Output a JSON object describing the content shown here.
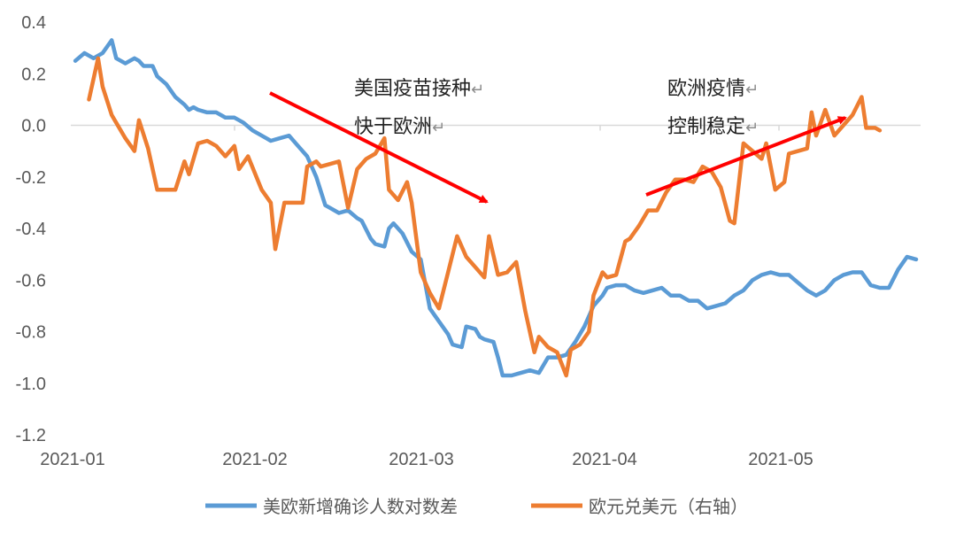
{
  "chart_data": {
    "type": "line",
    "ylim": [
      -1.2,
      0.4
    ],
    "yticks": [
      "0.4",
      "0.2",
      "0.0",
      "-0.2",
      "-0.4",
      "-0.6",
      "-0.8",
      "-1.0",
      "-1.2"
    ],
    "xtick_labels": [
      "2021-01",
      "2021-02",
      "2021-03",
      "2021-04",
      "2021-05"
    ],
    "grid": false,
    "legend_position": "bottom",
    "annotations": [
      {
        "lines": [
          "美国疫苗接种",
          "快于欧洲"
        ],
        "marker": "↵"
      },
      {
        "lines": [
          "欧洲疫情",
          "控制稳定"
        ],
        "marker": "↵"
      }
    ],
    "series": [
      {
        "name": "美欧新增确诊人数对数差",
        "color": "#5b9bd5",
        "points": [
          [
            1,
            0.25
          ],
          [
            3,
            0.28
          ],
          [
            5,
            0.26
          ],
          [
            7,
            0.28
          ],
          [
            9,
            0.33
          ],
          [
            10,
            0.26
          ],
          [
            12,
            0.24
          ],
          [
            14,
            0.26
          ],
          [
            15,
            0.25
          ],
          [
            16,
            0.23
          ],
          [
            18,
            0.23
          ],
          [
            19,
            0.19
          ],
          [
            21,
            0.16
          ],
          [
            23,
            0.11
          ],
          [
            25,
            0.08
          ],
          [
            26,
            0.06
          ],
          [
            27,
            0.07
          ],
          [
            28,
            0.06
          ],
          [
            30,
            0.05
          ],
          [
            32,
            0.05
          ],
          [
            34,
            0.03
          ],
          [
            36,
            0.03
          ],
          [
            38,
            0.01
          ],
          [
            40,
            -0.02
          ],
          [
            43,
            -0.05
          ],
          [
            44,
            -0.06
          ],
          [
            46,
            -0.05
          ],
          [
            48,
            -0.04
          ],
          [
            50,
            -0.08
          ],
          [
            52,
            -0.12
          ],
          [
            54,
            -0.2
          ],
          [
            56,
            -0.31
          ],
          [
            57,
            -0.32
          ],
          [
            59,
            -0.34
          ],
          [
            61,
            -0.33
          ],
          [
            63,
            -0.36
          ],
          [
            64,
            -0.37
          ],
          [
            66,
            -0.44
          ],
          [
            67,
            -0.46
          ],
          [
            69,
            -0.47
          ],
          [
            70,
            -0.4
          ],
          [
            71,
            -0.38
          ],
          [
            73,
            -0.42
          ],
          [
            75,
            -0.49
          ],
          [
            77,
            -0.52
          ],
          [
            79,
            -0.71
          ],
          [
            81,
            -0.76
          ],
          [
            83,
            -0.81
          ],
          [
            84,
            -0.85
          ],
          [
            86,
            -0.86
          ],
          [
            87,
            -0.78
          ],
          [
            89,
            -0.79
          ],
          [
            90,
            -0.82
          ],
          [
            91,
            -0.83
          ],
          [
            93,
            -0.84
          ],
          [
            94,
            -0.9
          ],
          [
            95,
            -0.97
          ],
          [
            97,
            -0.97
          ],
          [
            99,
            -0.96
          ],
          [
            101,
            -0.95
          ],
          [
            103,
            -0.96
          ],
          [
            105,
            -0.9
          ],
          [
            107,
            -0.9
          ],
          [
            109,
            -0.89
          ],
          [
            111,
            -0.84
          ],
          [
            113,
            -0.78
          ],
          [
            115,
            -0.7
          ],
          [
            117,
            -0.66
          ],
          [
            118,
            -0.63
          ],
          [
            120,
            -0.62
          ],
          [
            122,
            -0.62
          ],
          [
            124,
            -0.64
          ],
          [
            126,
            -0.65
          ],
          [
            128,
            -0.64
          ],
          [
            130,
            -0.63
          ],
          [
            132,
            -0.66
          ],
          [
            134,
            -0.66
          ],
          [
            136,
            -0.68
          ],
          [
            138,
            -0.68
          ],
          [
            140,
            -0.71
          ],
          [
            142,
            -0.7
          ],
          [
            144,
            -0.69
          ],
          [
            146,
            -0.66
          ],
          [
            148,
            -0.64
          ],
          [
            150,
            -0.6
          ],
          [
            152,
            -0.58
          ],
          [
            154,
            -0.57
          ],
          [
            156,
            -0.58
          ],
          [
            158,
            -0.58
          ],
          [
            160,
            -0.61
          ],
          [
            162,
            -0.64
          ],
          [
            164,
            -0.66
          ],
          [
            166,
            -0.64
          ],
          [
            168,
            -0.6
          ],
          [
            170,
            -0.58
          ],
          [
            172,
            -0.57
          ],
          [
            174,
            -0.57
          ],
          [
            176,
            -0.62
          ],
          [
            178,
            -0.63
          ],
          [
            180,
            -0.63
          ],
          [
            182,
            -0.56
          ],
          [
            184,
            -0.51
          ],
          [
            186,
            -0.52
          ]
        ]
      },
      {
        "name": "欧元兑美元（右轴）",
        "color": "#ed7d31",
        "points": [
          [
            4,
            0.1
          ],
          [
            6,
            0.26
          ],
          [
            7,
            0.15
          ],
          [
            9,
            0.04
          ],
          [
            12,
            -0.05
          ],
          [
            14,
            -0.1
          ],
          [
            15,
            0.02
          ],
          [
            17,
            -0.09
          ],
          [
            19,
            -0.25
          ],
          [
            21,
            -0.25
          ],
          [
            23,
            -0.25
          ],
          [
            25,
            -0.14
          ],
          [
            26,
            -0.19
          ],
          [
            28,
            -0.07
          ],
          [
            30,
            -0.06
          ],
          [
            32,
            -0.08
          ],
          [
            34,
            -0.12
          ],
          [
            36,
            -0.08
          ],
          [
            37,
            -0.17
          ],
          [
            39,
            -0.12
          ],
          [
            42,
            -0.25
          ],
          [
            44,
            -0.3
          ],
          [
            45,
            -0.48
          ],
          [
            47,
            -0.3
          ],
          [
            49,
            -0.3
          ],
          [
            51,
            -0.3
          ],
          [
            52,
            -0.16
          ],
          [
            54,
            -0.14
          ],
          [
            55,
            -0.16
          ],
          [
            57,
            -0.15
          ],
          [
            59,
            -0.14
          ],
          [
            61,
            -0.32
          ],
          [
            63,
            -0.17
          ],
          [
            65,
            -0.13
          ],
          [
            67,
            -0.11
          ],
          [
            69,
            -0.05
          ],
          [
            70,
            -0.25
          ],
          [
            72,
            -0.29
          ],
          [
            74,
            -0.22
          ],
          [
            75,
            -0.3
          ],
          [
            77,
            -0.57
          ],
          [
            79,
            -0.65
          ],
          [
            81,
            -0.71
          ],
          [
            83,
            -0.57
          ],
          [
            85,
            -0.43
          ],
          [
            87,
            -0.51
          ],
          [
            89,
            -0.55
          ],
          [
            91,
            -0.59
          ],
          [
            92,
            -0.43
          ],
          [
            94,
            -0.58
          ],
          [
            96,
            -0.57
          ],
          [
            98,
            -0.53
          ],
          [
            100,
            -0.72
          ],
          [
            102,
            -0.88
          ],
          [
            103,
            -0.82
          ],
          [
            105,
            -0.86
          ],
          [
            107,
            -0.88
          ],
          [
            109,
            -0.97
          ],
          [
            110,
            -0.87
          ],
          [
            112,
            -0.85
          ],
          [
            114,
            -0.8
          ],
          [
            115,
            -0.66
          ],
          [
            117,
            -0.57
          ],
          [
            118,
            -0.59
          ],
          [
            120,
            -0.58
          ],
          [
            122,
            -0.45
          ],
          [
            123,
            -0.44
          ],
          [
            125,
            -0.39
          ],
          [
            127,
            -0.33
          ],
          [
            129,
            -0.33
          ],
          [
            131,
            -0.26
          ],
          [
            133,
            -0.21
          ],
          [
            135,
            -0.21
          ],
          [
            137,
            -0.22
          ],
          [
            139,
            -0.16
          ],
          [
            141,
            -0.18
          ],
          [
            143,
            -0.24
          ],
          [
            145,
            -0.37
          ],
          [
            146,
            -0.38
          ],
          [
            148,
            -0.07
          ],
          [
            150,
            -0.1
          ],
          [
            152,
            -0.13
          ],
          [
            153,
            -0.07
          ],
          [
            155,
            -0.25
          ],
          [
            157,
            -0.22
          ],
          [
            158,
            -0.11
          ],
          [
            160,
            -0.1
          ],
          [
            162,
            -0.09
          ],
          [
            163,
            0.05
          ],
          [
            164,
            -0.04
          ],
          [
            166,
            0.06
          ],
          [
            168,
            -0.04
          ],
          [
            170,
            0.0
          ],
          [
            172,
            0.04
          ],
          [
            174,
            0.11
          ],
          [
            175,
            -0.01
          ],
          [
            177,
            -0.01
          ],
          [
            178,
            -0.02
          ]
        ]
      }
    ]
  }
}
